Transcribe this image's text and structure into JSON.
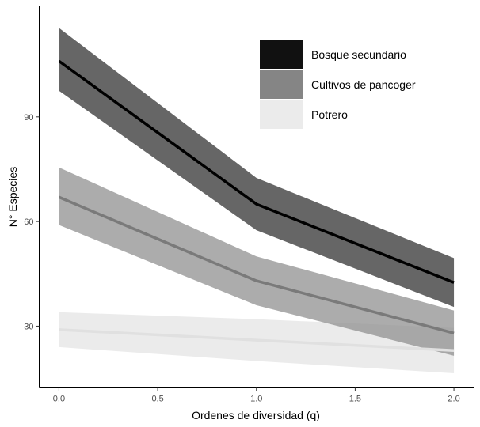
{
  "chart_data": {
    "type": "line",
    "xlabel": "Ordenes de diversidad (q)",
    "ylabel": "N° Especies",
    "xlim": [
      -0.1,
      2.1
    ],
    "ylim": [
      12.3,
      121.7
    ],
    "x_ticks": [
      0.0,
      0.5,
      1.0,
      1.5,
      2.0
    ],
    "x_tick_labels": [
      "0.0",
      "0.5",
      "1.0",
      "1.5",
      "2.0"
    ],
    "y_ticks": [
      30,
      60,
      90
    ],
    "y_tick_labels": [
      "30",
      "60",
      "90"
    ],
    "grid": false,
    "legend_position": "top-right",
    "x": [
      0,
      1,
      2
    ],
    "series": [
      {
        "name": "Potrero",
        "values": [
          29.0,
          26.0,
          23.0
        ],
        "lower": [
          24.0,
          20.0,
          16.5
        ],
        "upper": [
          34.0,
          32.0,
          29.5
        ],
        "line_color": "#e0e0e0",
        "fill_color": "#ebebeb",
        "swatch_color": "#ebebeb"
      },
      {
        "name": "Cultivos de pancoger",
        "values": [
          67.0,
          43.0,
          28.0
        ],
        "lower": [
          59.0,
          36.0,
          21.5
        ],
        "upper": [
          75.5,
          50.0,
          34.5
        ],
        "line_color": "#7a7a7a",
        "fill_color": "rgba(140,140,140,0.72)",
        "swatch_color": "#858585"
      },
      {
        "name": "Bosque secundario",
        "values": [
          106.0,
          65.0,
          42.5
        ],
        "lower": [
          97.5,
          57.5,
          35.5
        ],
        "upper": [
          115.5,
          72.5,
          49.5
        ],
        "line_color": "#000000",
        "fill_color": "#666666",
        "swatch_color": "#111111"
      }
    ],
    "legend_order": [
      "Bosque secundario",
      "Cultivos de pancoger",
      "Potrero"
    ]
  }
}
